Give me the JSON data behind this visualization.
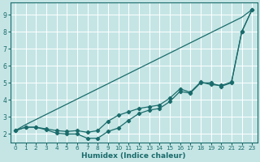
{
  "xlabel": "Humidex (Indice chaleur)",
  "xlim": [
    -0.5,
    23.5
  ],
  "ylim": [
    1.5,
    9.7
  ],
  "yticks": [
    2,
    3,
    4,
    5,
    6,
    7,
    8,
    9
  ],
  "xticks": [
    0,
    1,
    2,
    3,
    4,
    5,
    6,
    7,
    8,
    9,
    10,
    11,
    12,
    13,
    14,
    15,
    16,
    17,
    18,
    19,
    20,
    21,
    22,
    23
  ],
  "bg_color": "#c5e5e5",
  "line_color": "#1a6b6b",
  "grid_color": "#ffffff",
  "line1_x": [
    0,
    1,
    2,
    3,
    4,
    5,
    6,
    7,
    8,
    9,
    10,
    11,
    12,
    13,
    14,
    15,
    16,
    17,
    18,
    19,
    20,
    21,
    22,
    23
  ],
  "line1_y": [
    2.2,
    2.55,
    2.85,
    3.15,
    3.45,
    3.75,
    4.05,
    4.35,
    4.65,
    4.95,
    5.25,
    5.55,
    5.85,
    6.15,
    6.45,
    6.75,
    7.05,
    7.35,
    7.65,
    7.95,
    8.25,
    8.55,
    8.85,
    9.3
  ],
  "line2_x": [
    0,
    1,
    2,
    3,
    4,
    5,
    6,
    7,
    8,
    9,
    10,
    11,
    12,
    13,
    14,
    15,
    16,
    17,
    18,
    19,
    20,
    21,
    22,
    23
  ],
  "line2_y": [
    2.2,
    2.4,
    2.4,
    2.25,
    2.05,
    2.0,
    2.0,
    1.75,
    1.75,
    2.15,
    2.35,
    2.8,
    3.2,
    3.4,
    3.5,
    3.9,
    4.5,
    4.4,
    5.0,
    5.0,
    4.8,
    5.0,
    8.0,
    9.3
  ],
  "line3_x": [
    0,
    1,
    2,
    3,
    4,
    5,
    6,
    7,
    8,
    9,
    10,
    11,
    12,
    13,
    14,
    15,
    16,
    17,
    18,
    19,
    20,
    21,
    22,
    23
  ],
  "line3_y": [
    2.2,
    2.4,
    2.4,
    2.3,
    2.2,
    2.15,
    2.2,
    2.1,
    2.2,
    2.75,
    3.1,
    3.3,
    3.5,
    3.6,
    3.7,
    4.1,
    4.65,
    4.45,
    5.05,
    4.9,
    4.85,
    5.05,
    8.0,
    9.3
  ]
}
